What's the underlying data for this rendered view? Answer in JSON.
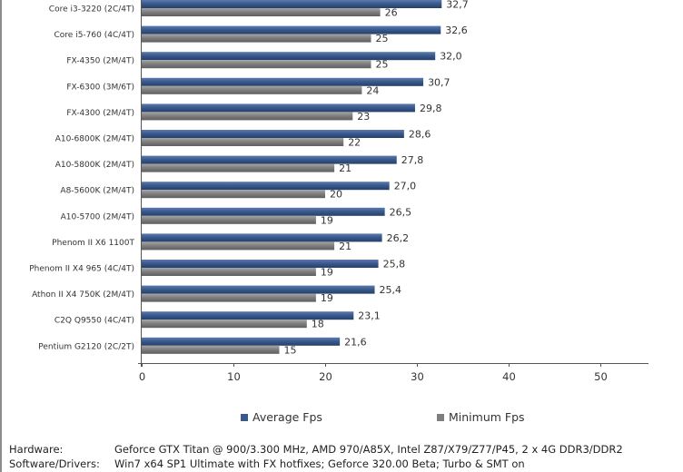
{
  "chart_data": {
    "type": "bar",
    "orientation": "horizontal",
    "categories": [
      "Core i3-3220 (2C/4T)",
      "Core i5-760 (4C/4T)",
      "FX-4350 (2M/4T)",
      "FX-6300 (3M/6T)",
      "FX-4300 (2M/4T)",
      "A10-6800K (2M/4T)",
      "A10-5800K (2M/4T)",
      "A8-5600K (2M/4T)",
      "A10-5700 (2M/4T)",
      "Phenom II X6 1100T",
      "Phenom II X4 965 (4C/4T)",
      "Athon II X4 750K (2M/4T)",
      "C2Q Q9550 (4C/4T)",
      "Pentium G2120 (2C/2T)"
    ],
    "series": [
      {
        "name": "Average Fps",
        "color": "#3b5a8c",
        "values": [
          32.7,
          32.6,
          32.0,
          30.7,
          29.8,
          28.6,
          27.8,
          27.0,
          26.5,
          26.2,
          25.8,
          25.4,
          23.1,
          21.6
        ],
        "labels": [
          "32,7",
          "32,6",
          "32,0",
          "30,7",
          "29,8",
          "28,6",
          "27,8",
          "27,0",
          "26,5",
          "26,2",
          "25,8",
          "25,4",
          "23,1",
          "21,6"
        ]
      },
      {
        "name": "Minimum Fps",
        "color": "#7f7f7f",
        "values": [
          26,
          25,
          25,
          24,
          23,
          22,
          21,
          20,
          19,
          21,
          19,
          19,
          18,
          15
        ],
        "labels": [
          "26",
          "25",
          "25",
          "24",
          "23",
          "22",
          "21",
          "20",
          "19",
          "21",
          "19",
          "19",
          "18",
          "15"
        ]
      }
    ],
    "xlim": [
      0,
      55
    ],
    "xticks": [
      0,
      10,
      20,
      30,
      40,
      50
    ],
    "xtick_labels": [
      "0",
      "10",
      "20",
      "30",
      "40",
      "50"
    ],
    "grid": false,
    "legend_position": "bottom"
  },
  "legend": {
    "average_label": "Average Fps",
    "minimum_label": "Minimum Fps"
  },
  "footer": {
    "hardware_key": "Hardware:",
    "hardware_value": "Geforce GTX Titan @ 900/3.300 MHz, AMD 970/A85X, Intel Z87/X79/Z77/P45, 2 x 4G DDR3/DDR2",
    "software_key": "Software/Drivers:",
    "software_value": "Win7 x64 SP1 Ultimate with FX hotfixes; Geforce 320.00 Beta; Turbo & SMT on"
  }
}
